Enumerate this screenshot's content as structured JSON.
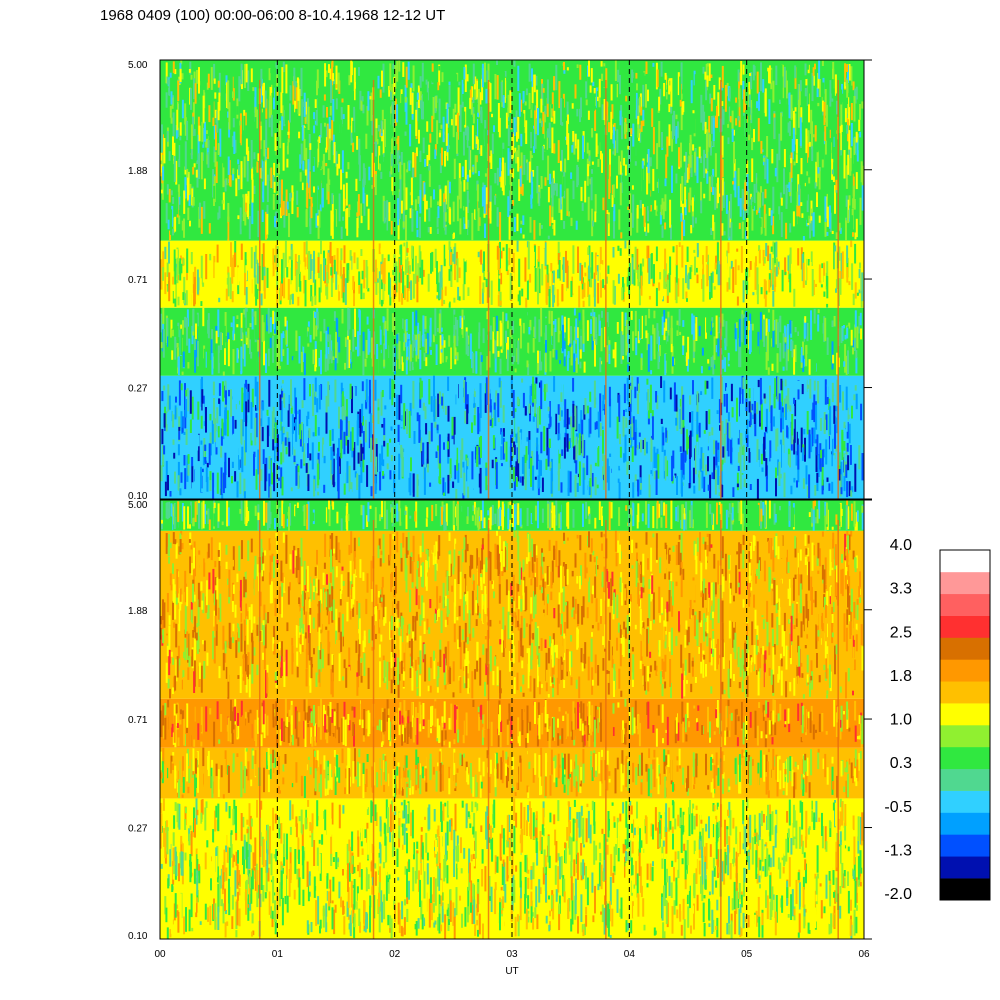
{
  "title": "1968 0409 (100) 00:00-06:00 8-10.4.1968  12-12 UT",
  "chart_data": {
    "type": "heatmap",
    "xlabel": "UT",
    "x_ticks": [
      "00",
      "01",
      "02",
      "03",
      "04",
      "05",
      "06"
    ],
    "xlim": [
      0,
      6
    ],
    "panels": [
      {
        "name": "upper",
        "y_ticks": [
          "5.00",
          "1.88",
          "0.71",
          "0.27",
          "0.10"
        ],
        "ylim": [
          0.1,
          5.0
        ],
        "y_scale": "log",
        "value_bands": [
          {
            "ymin": 0.1,
            "ymax": 0.3,
            "level": -0.5
          },
          {
            "ymin": 0.3,
            "ymax": 0.55,
            "level": 0.3
          },
          {
            "ymin": 0.55,
            "ymax": 1.0,
            "level": 1.0
          },
          {
            "ymin": 1.0,
            "ymax": 5.0,
            "level": 0.6
          }
        ]
      },
      {
        "name": "lower",
        "y_ticks": [
          "5.00",
          "1.88",
          "0.71",
          "0.27",
          "0.10"
        ],
        "ylim": [
          0.1,
          5.0
        ],
        "y_scale": "log",
        "value_bands": [
          {
            "ymin": 0.1,
            "ymax": 0.35,
            "level": 1.0
          },
          {
            "ymin": 0.35,
            "ymax": 0.55,
            "level": 1.4
          },
          {
            "ymin": 0.55,
            "ymax": 0.85,
            "level": 1.8
          },
          {
            "ymin": 0.85,
            "ymax": 3.8,
            "level": 1.6
          },
          {
            "ymin": 3.8,
            "ymax": 5.0,
            "level": 0.6
          }
        ]
      }
    ],
    "vertical_lines_ut": [
      1,
      2,
      3,
      4,
      5
    ],
    "spike_lines_ut": [
      0.85,
      1.82,
      2.8,
      3.8,
      4.78,
      5.78
    ],
    "grid": false,
    "colorbar": {
      "labels": [
        "4.0",
        "3.3",
        "2.5",
        "1.8",
        "1.0",
        "0.3",
        "-0.5",
        "-1.3",
        "-2.0"
      ],
      "range": [
        -2.0,
        4.0
      ],
      "colors": [
        "#000000",
        "#0010b0",
        "#0050ff",
        "#00a0ff",
        "#30d0ff",
        "#50d890",
        "#30e840",
        "#90f030",
        "#ffff00",
        "#ffc000",
        "#ff9800",
        "#d87000",
        "#ff3030",
        "#ff6060",
        "#ff9898",
        "#ffffff"
      ]
    }
  }
}
